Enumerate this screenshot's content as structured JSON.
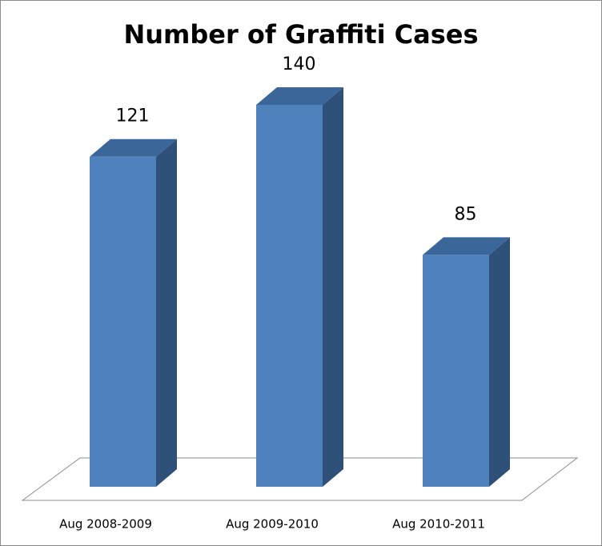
{
  "chart_data": {
    "type": "bar3d",
    "title": "Number of Graffiti Cases",
    "categories": [
      "Aug 2008-2009",
      "Aug 2009-2010",
      "Aug 2010-2011"
    ],
    "values": [
      121,
      140,
      85
    ],
    "color": "#4f81bd"
  }
}
